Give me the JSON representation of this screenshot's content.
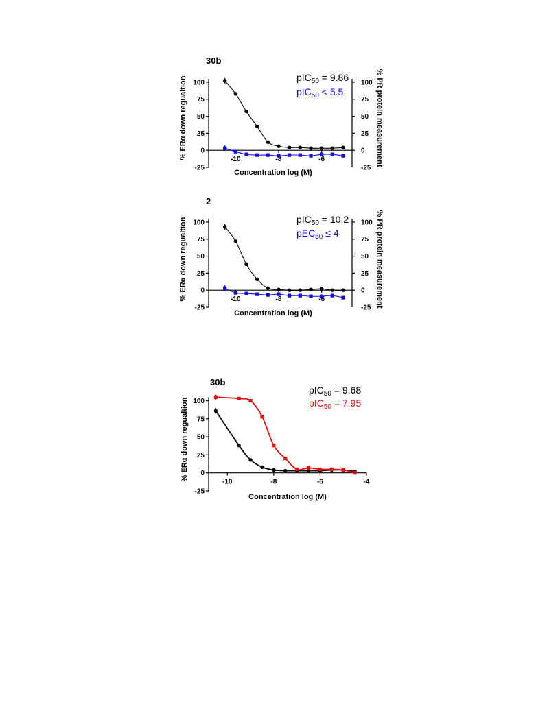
{
  "chart_data": [
    {
      "type": "line",
      "title": "30b",
      "xlabel": "Concentration log (M)",
      "ylabel": "% ERα down regualtion",
      "y2label": "% PR protein measurement",
      "xlim": [
        -11,
        -5
      ],
      "ylim": [
        -25,
        110
      ],
      "x_ticks": [
        -10,
        -8,
        -6
      ],
      "y_ticks": [
        -25,
        0,
        25,
        50,
        75,
        100
      ],
      "y2_ticks": [
        0,
        25,
        50,
        75,
        100
      ],
      "grid": false,
      "series": [
        {
          "label_text": "pIC",
          "label_sub": "50",
          "label_rest": " = 9.86",
          "color": "#000000",
          "marker": "circle",
          "x": [
            -10.5,
            -10.0,
            -9.5,
            -9.0,
            -8.5,
            -8.0,
            -7.5,
            -7.0,
            -6.5,
            -6.0,
            -5.5,
            -5.0
          ],
          "y": [
            102,
            83,
            57,
            35,
            12,
            6,
            4,
            4,
            3,
            3,
            3,
            4
          ]
        },
        {
          "label_text": "pIC",
          "label_sub": "50",
          "label_rest": " < 5.5",
          "color": "#1010dd",
          "marker": "square",
          "x": [
            -10.5,
            -10.0,
            -9.5,
            -9.0,
            -8.5,
            -8.0,
            -7.5,
            -7.0,
            -6.5,
            -6.0,
            -5.5,
            -5.0
          ],
          "y": [
            3,
            -2,
            -6,
            -7,
            -7,
            -8,
            -7,
            -7,
            -8,
            -6,
            -6,
            -8
          ]
        }
      ]
    },
    {
      "type": "line",
      "title": "2",
      "xlabel": "Concentration log (M)",
      "ylabel": "% ERα down regualtion",
      "y2label": "% PR protein measurement",
      "xlim": [
        -11,
        -5
      ],
      "ylim": [
        -25,
        110
      ],
      "x_ticks": [
        -10,
        -8,
        -6
      ],
      "y_ticks": [
        -25,
        0,
        25,
        50,
        75,
        100
      ],
      "y2_ticks": [
        0,
        25,
        50,
        75,
        100
      ],
      "grid": false,
      "series": [
        {
          "label_text": "pIC",
          "label_sub": "50",
          "label_rest": " = 10.2",
          "color": "#000000",
          "marker": "circle",
          "x": [
            -10.5,
            -10.0,
            -9.5,
            -9.0,
            -8.5,
            -8.0,
            -7.5,
            -7.0,
            -6.5,
            -6.0,
            -5.5,
            -5.0
          ],
          "y": [
            93,
            72,
            38,
            16,
            3,
            1,
            0,
            0,
            1,
            2,
            0,
            0
          ]
        },
        {
          "label_text": "pEC",
          "label_sub": "50",
          "label_rest": " ≤ 4",
          "color": "#1010dd",
          "marker": "square",
          "x": [
            -10.5,
            -10.0,
            -9.5,
            -9.0,
            -8.5,
            -8.0,
            -7.5,
            -7.0,
            -6.5,
            -6.0,
            -5.5,
            -5.0
          ],
          "y": [
            3,
            -4,
            -5,
            -6,
            -7,
            -6,
            -8,
            -8,
            -9,
            -9,
            -8,
            -11
          ]
        }
      ]
    },
    {
      "type": "line",
      "title": "30b",
      "xlabel": "Concentration log (M)",
      "ylabel": "% ERα down regualtion",
      "xlim": [
        -10.6,
        -4
      ],
      "ylim": [
        -25,
        110
      ],
      "x_ticks": [
        -10,
        -8,
        -6,
        -4
      ],
      "y_ticks": [
        -25,
        0,
        25,
        50,
        75,
        100
      ],
      "grid": false,
      "series": [
        {
          "label_text": "pIC",
          "label_sub": "50",
          "label_rest": " = 9.68",
          "color": "#000000",
          "marker": "circle",
          "x": [
            -10.5,
            -9.5,
            -9.0,
            -8.5,
            -8.0,
            -7.5,
            -7.0,
            -6.5,
            -6.0,
            -5.5,
            -5.0,
            -4.5
          ],
          "y": [
            86,
            38,
            18,
            8,
            4,
            3,
            3,
            3,
            3,
            4,
            4,
            2
          ]
        },
        {
          "label_text": "pIC",
          "label_sub": "50",
          "label_rest": " = 7.95",
          "color": "#e01010",
          "marker": "square",
          "x": [
            -10.5,
            -9.5,
            -9.0,
            -8.5,
            -8.0,
            -7.5,
            -7.0,
            -6.5,
            -6.0,
            -5.5,
            -5.0,
            -4.5
          ],
          "y": [
            105,
            103,
            100,
            78,
            38,
            20,
            5,
            7,
            5,
            5,
            4,
            0
          ]
        }
      ]
    }
  ]
}
